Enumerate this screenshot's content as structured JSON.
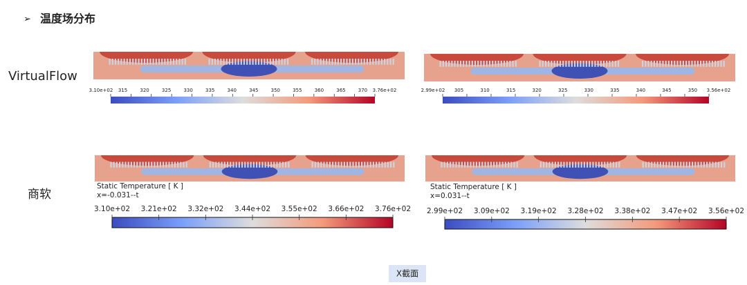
{
  "header": {
    "title": "温度场分布"
  },
  "rows": [
    {
      "label": "VirtualFlow",
      "panels": [
        {
          "colorbar": {
            "ticks": [
              "3.10e+02",
              "315",
              "320",
              "325",
              "330",
              "335",
              "340",
              "345",
              "350",
              "355",
              "360",
              "365",
              "370",
              "3.76e+02"
            ]
          }
        },
        {
          "colorbar": {
            "ticks": [
              "2.99e+02",
              "305",
              "310",
              "315",
              "320",
              "325",
              "330",
              "335",
              "340",
              "345",
              "350",
              "3.56e+02"
            ]
          }
        }
      ]
    },
    {
      "label": "商软",
      "panels": [
        {
          "legend_title": "Static Temperature [ K ]",
          "subtitle": "x=-0.031--t",
          "colorbar": {
            "ticks": [
              "3.10e+02",
              "3.21e+02",
              "3.32e+02",
              "3.44e+02",
              "3.55e+02",
              "3.66e+02",
              "3.76e+02"
            ]
          }
        },
        {
          "legend_title": "Static Temperature [ K ]",
          "subtitle": "x=0.031--t",
          "colorbar": {
            "ticks": [
              "2.99e+02",
              "3.09e+02",
              "3.19e+02",
              "3.28e+02",
              "3.38e+02",
              "3.47e+02",
              "3.56e+02"
            ]
          }
        }
      ]
    }
  ],
  "footer": {
    "caption": "X截面"
  }
}
